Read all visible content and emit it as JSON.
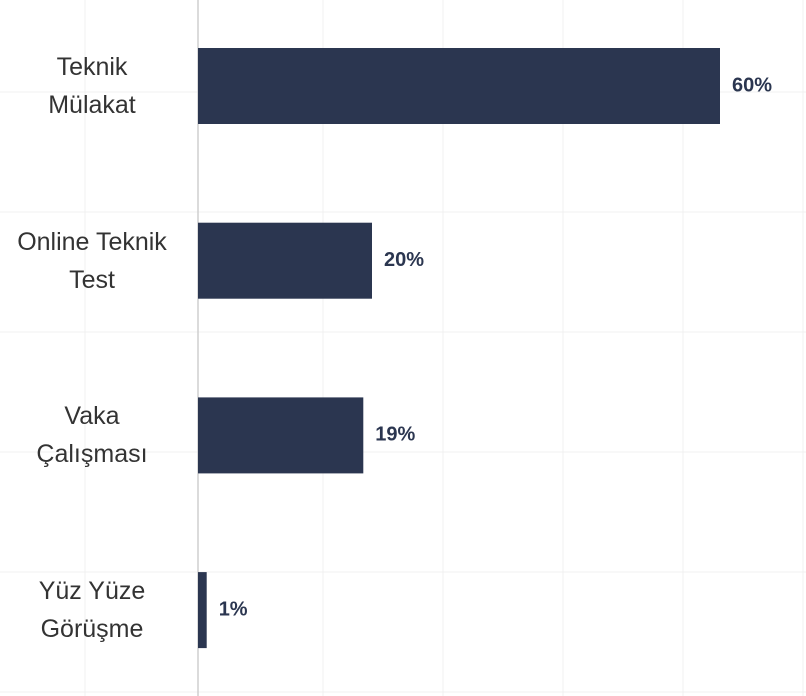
{
  "chart_data": {
    "type": "barh",
    "categories": [
      "Teknik Mülakat",
      "Online Teknik Test",
      "Vaka Çalışması",
      "Yüz Yüze Görüşme"
    ],
    "values": [
      60,
      20,
      19,
      1
    ],
    "value_labels": [
      "60%",
      "20%",
      "19%",
      "1%"
    ],
    "color": "#2b3650",
    "xlim": [
      0,
      70
    ]
  }
}
